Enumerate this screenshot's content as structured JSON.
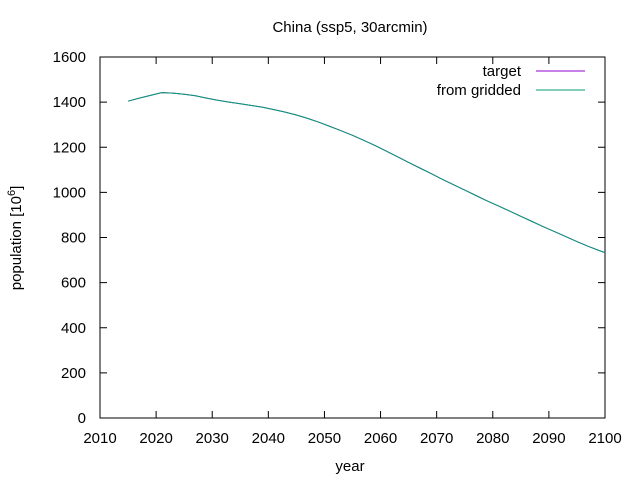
{
  "chart_data": {
    "type": "line",
    "title": "China (ssp5, 30arcmin)",
    "xlabel": "year",
    "ylabel": "population [10",
    "ylabel_sup": "6",
    "ylabel_close": "]",
    "xlim": [
      2010,
      2100
    ],
    "ylim": [
      0,
      1600
    ],
    "xticks": [
      2010,
      2020,
      2030,
      2040,
      2050,
      2060,
      2070,
      2080,
      2090,
      2100
    ],
    "yticks": [
      0,
      200,
      400,
      600,
      800,
      1000,
      1200,
      1400,
      1600
    ],
    "grid": false,
    "legend_position": "top-right",
    "series": [
      {
        "name": "target",
        "color": "#9400d3",
        "x": [
          2015,
          2017,
          2019,
          2021,
          2023,
          2025,
          2027,
          2029,
          2031,
          2033,
          2035,
          2037,
          2039,
          2041,
          2043,
          2045,
          2047,
          2049,
          2051,
          2053,
          2055,
          2057,
          2059,
          2061,
          2063,
          2065,
          2067,
          2069,
          2071,
          2073,
          2075,
          2077,
          2079,
          2081,
          2083,
          2085,
          2087,
          2089,
          2091,
          2093,
          2095,
          2097,
          2099,
          2100
        ],
        "y": [
          1404,
          1418,
          1430,
          1442,
          1440,
          1435,
          1428,
          1418,
          1408,
          1400,
          1393,
          1385,
          1377,
          1367,
          1356,
          1343,
          1328,
          1311,
          1292,
          1273,
          1253,
          1231,
          1208,
          1183,
          1158,
          1133,
          1108,
          1083,
          1058,
          1034,
          1010,
          986,
          962,
          940,
          917,
          894,
          871,
          848,
          826,
          804,
          782,
          761,
          742,
          733
        ]
      },
      {
        "name": "from gridded",
        "color": "#009e73",
        "x": [
          2015,
          2017,
          2019,
          2021,
          2023,
          2025,
          2027,
          2029,
          2031,
          2033,
          2035,
          2037,
          2039,
          2041,
          2043,
          2045,
          2047,
          2049,
          2051,
          2053,
          2055,
          2057,
          2059,
          2061,
          2063,
          2065,
          2067,
          2069,
          2071,
          2073,
          2075,
          2077,
          2079,
          2081,
          2083,
          2085,
          2087,
          2089,
          2091,
          2093,
          2095,
          2097,
          2099,
          2100
        ],
        "y": [
          1404,
          1418,
          1430,
          1442,
          1440,
          1435,
          1428,
          1418,
          1408,
          1400,
          1393,
          1385,
          1377,
          1367,
          1356,
          1343,
          1328,
          1311,
          1292,
          1273,
          1253,
          1231,
          1208,
          1183,
          1158,
          1133,
          1108,
          1083,
          1058,
          1034,
          1010,
          986,
          962,
          940,
          917,
          894,
          871,
          848,
          826,
          804,
          782,
          761,
          742,
          733
        ]
      }
    ]
  }
}
